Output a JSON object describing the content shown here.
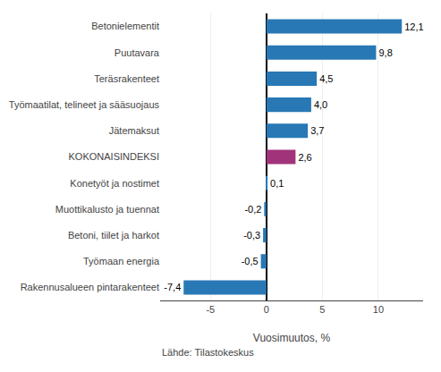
{
  "chart_data": {
    "type": "bar",
    "orientation": "horizontal",
    "categories": [
      "Rakennusalueen pintarakenteet",
      "Työmaan energia",
      "Betoni, tiilet ja harkot",
      "Muottikalusto ja tuennat",
      "Konetyöt ja nostimet",
      "KOKONAISINDEKSI",
      "Jätemaksut",
      "Työmaatilat, telineet ja sääsuojaus",
      "Teräsrakenteet",
      "Puutavara",
      "Betonielementit"
    ],
    "values": [
      -7.4,
      -0.5,
      -0.3,
      -0.2,
      0.1,
      2.6,
      3.7,
      4.0,
      4.5,
      9.8,
      12.1
    ],
    "value_labels": [
      "-7,4",
      "-0,5",
      "-0,3",
      "-0,2",
      "0,1",
      "2,6",
      "3,7",
      "4,0",
      "4,5",
      "9,8",
      "12,1"
    ],
    "data_labels": true,
    "colors": [
      "#2878b5",
      "#2878b5",
      "#2878b5",
      "#2878b5",
      "#2878b5",
      "#a0337a",
      "#2878b5",
      "#2878b5",
      "#2878b5",
      "#2878b5",
      "#2878b5"
    ],
    "xlabel": "Vuosimuutos, %",
    "xlim": [
      -9.5,
      14.0
    ],
    "xticks": [
      -5,
      0,
      5,
      10
    ],
    "grid": true,
    "annotations": [
      "Lähde: Tilastokeskus"
    ]
  }
}
